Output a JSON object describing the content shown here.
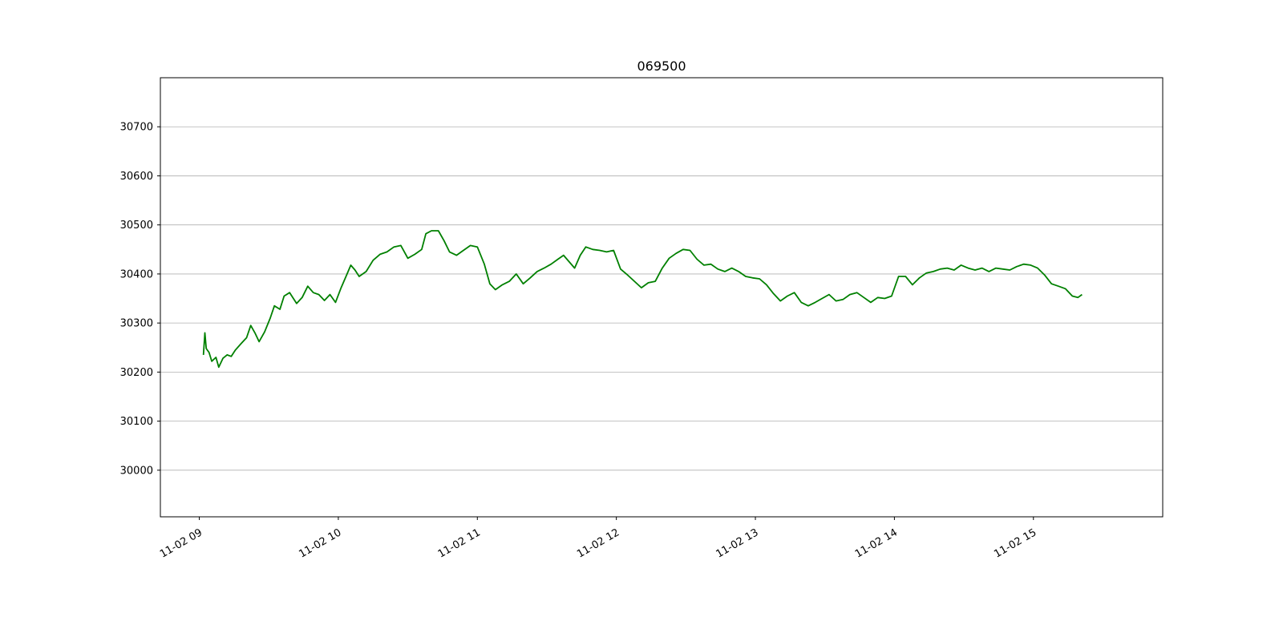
{
  "chart_data": {
    "type": "line",
    "title": "069500",
    "xlabel": "",
    "ylabel": "",
    "x_unit": "hour",
    "xlim": [
      8.72,
      15.93
    ],
    "ylim": [
      29905,
      30800
    ],
    "yticks": [
      30000,
      30100,
      30200,
      30300,
      30400,
      30500,
      30600,
      30700
    ],
    "xticks": [
      {
        "value": 9,
        "label": "11-02 09"
      },
      {
        "value": 10,
        "label": "11-02 10"
      },
      {
        "value": 11,
        "label": "11-02 11"
      },
      {
        "value": 12,
        "label": "11-02 12"
      },
      {
        "value": 13,
        "label": "11-02 13"
      },
      {
        "value": 14,
        "label": "11-02 14"
      },
      {
        "value": 15,
        "label": "11-02 15"
      }
    ],
    "grid": {
      "y": true,
      "x": false
    },
    "series": [
      {
        "color": "#008000",
        "points": [
          [
            9.03,
            30235
          ],
          [
            9.04,
            30280
          ],
          [
            9.05,
            30248
          ],
          [
            9.07,
            30240
          ],
          [
            9.09,
            30222
          ],
          [
            9.12,
            30230
          ],
          [
            9.14,
            30210
          ],
          [
            9.17,
            30228
          ],
          [
            9.2,
            30235
          ],
          [
            9.23,
            30232
          ],
          [
            9.26,
            30245
          ],
          [
            9.3,
            30258
          ],
          [
            9.34,
            30270
          ],
          [
            9.37,
            30295
          ],
          [
            9.4,
            30280
          ],
          [
            9.43,
            30262
          ],
          [
            9.47,
            30282
          ],
          [
            9.51,
            30310
          ],
          [
            9.54,
            30335
          ],
          [
            9.58,
            30328
          ],
          [
            9.61,
            30355
          ],
          [
            9.65,
            30362
          ],
          [
            9.7,
            30340
          ],
          [
            9.74,
            30352
          ],
          [
            9.78,
            30375
          ],
          [
            9.82,
            30362
          ],
          [
            9.86,
            30358
          ],
          [
            9.9,
            30346
          ],
          [
            9.94,
            30358
          ],
          [
            9.98,
            30342
          ],
          [
            10.02,
            30372
          ],
          [
            10.06,
            30398
          ],
          [
            10.09,
            30418
          ],
          [
            10.12,
            30408
          ],
          [
            10.15,
            30395
          ],
          [
            10.2,
            30405
          ],
          [
            10.25,
            30428
          ],
          [
            10.3,
            30440
          ],
          [
            10.35,
            30445
          ],
          [
            10.4,
            30455
          ],
          [
            10.45,
            30458
          ],
          [
            10.5,
            30432
          ],
          [
            10.55,
            30440
          ],
          [
            10.6,
            30450
          ],
          [
            10.63,
            30482
          ],
          [
            10.67,
            30488
          ],
          [
            10.72,
            30488
          ],
          [
            10.76,
            30468
          ],
          [
            10.8,
            30445
          ],
          [
            10.85,
            30438
          ],
          [
            10.9,
            30448
          ],
          [
            10.95,
            30458
          ],
          [
            11.0,
            30455
          ],
          [
            11.05,
            30420
          ],
          [
            11.09,
            30380
          ],
          [
            11.13,
            30368
          ],
          [
            11.18,
            30378
          ],
          [
            11.23,
            30385
          ],
          [
            11.28,
            30400
          ],
          [
            11.33,
            30380
          ],
          [
            11.38,
            30392
          ],
          [
            11.43,
            30405
          ],
          [
            11.48,
            30412
          ],
          [
            11.53,
            30420
          ],
          [
            11.58,
            30430
          ],
          [
            11.62,
            30438
          ],
          [
            11.66,
            30425
          ],
          [
            11.7,
            30412
          ],
          [
            11.74,
            30438
          ],
          [
            11.78,
            30455
          ],
          [
            11.83,
            30450
          ],
          [
            11.88,
            30448
          ],
          [
            11.93,
            30445
          ],
          [
            11.98,
            30448
          ],
          [
            12.03,
            30410
          ],
          [
            12.08,
            30398
          ],
          [
            12.13,
            30385
          ],
          [
            12.18,
            30372
          ],
          [
            12.23,
            30382
          ],
          [
            12.28,
            30385
          ],
          [
            12.33,
            30412
          ],
          [
            12.38,
            30432
          ],
          [
            12.43,
            30442
          ],
          [
            12.48,
            30450
          ],
          [
            12.53,
            30448
          ],
          [
            12.58,
            30430
          ],
          [
            12.63,
            30418
          ],
          [
            12.68,
            30420
          ],
          [
            12.73,
            30410
          ],
          [
            12.78,
            30405
          ],
          [
            12.83,
            30412
          ],
          [
            12.88,
            30405
          ],
          [
            12.93,
            30395
          ],
          [
            12.98,
            30392
          ],
          [
            13.03,
            30390
          ],
          [
            13.08,
            30378
          ],
          [
            13.13,
            30360
          ],
          [
            13.18,
            30345
          ],
          [
            13.23,
            30355
          ],
          [
            13.28,
            30362
          ],
          [
            13.33,
            30342
          ],
          [
            13.38,
            30335
          ],
          [
            13.43,
            30342
          ],
          [
            13.48,
            30350
          ],
          [
            13.53,
            30358
          ],
          [
            13.58,
            30345
          ],
          [
            13.63,
            30348
          ],
          [
            13.68,
            30358
          ],
          [
            13.73,
            30362
          ],
          [
            13.78,
            30352
          ],
          [
            13.83,
            30342
          ],
          [
            13.88,
            30352
          ],
          [
            13.93,
            30350
          ],
          [
            13.98,
            30355
          ],
          [
            14.03,
            30395
          ],
          [
            14.08,
            30395
          ],
          [
            14.13,
            30378
          ],
          [
            14.18,
            30392
          ],
          [
            14.23,
            30402
          ],
          [
            14.28,
            30405
          ],
          [
            14.33,
            30410
          ],
          [
            14.38,
            30412
          ],
          [
            14.43,
            30408
          ],
          [
            14.48,
            30418
          ],
          [
            14.53,
            30412
          ],
          [
            14.58,
            30408
          ],
          [
            14.63,
            30412
          ],
          [
            14.68,
            30405
          ],
          [
            14.73,
            30412
          ],
          [
            14.78,
            30410
          ],
          [
            14.83,
            30408
          ],
          [
            14.88,
            30415
          ],
          [
            14.93,
            30420
          ],
          [
            14.98,
            30418
          ],
          [
            15.03,
            30412
          ],
          [
            15.08,
            30398
          ],
          [
            15.13,
            30380
          ],
          [
            15.18,
            30375
          ],
          [
            15.23,
            30370
          ],
          [
            15.28,
            30355
          ],
          [
            15.32,
            30352
          ],
          [
            15.35,
            30358
          ]
        ]
      }
    ]
  }
}
